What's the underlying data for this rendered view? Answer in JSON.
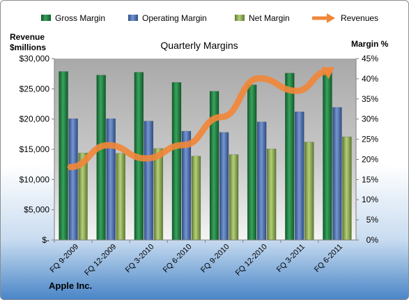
{
  "chart_data": {
    "type": "bar",
    "title": "Quarterly Margins",
    "company": "Apple Inc.",
    "y_left_label_line1": "Revenue",
    "y_left_label_line2": "$millions",
    "y_right_label": "Margin %",
    "categories": [
      "FQ 9-2009",
      "FQ 12-2009",
      "FQ 3-2010",
      "FQ 6-2010",
      "FQ 9-2010",
      "FQ 12-2010",
      "FQ 3-2011",
      "FQ 6-2011"
    ],
    "y_left_lim": [
      0,
      30000
    ],
    "y_left_ticks": [
      "$-",
      "$5,000",
      "$10,000",
      "$15,000",
      "$20,000",
      "$25,000",
      "$30,000"
    ],
    "y_right_lim": [
      0,
      45
    ],
    "y_right_ticks": [
      "0%",
      "5%",
      "10%",
      "15%",
      "20%",
      "25%",
      "30%",
      "35%",
      "40%",
      "45%"
    ],
    "series": [
      {
        "name": "Gross Margin",
        "kind": "bar",
        "axis": "right",
        "color": "#1e7b3e",
        "values": [
          41.8,
          40.9,
          41.6,
          39.1,
          36.9,
          38.5,
          41.4,
          41.7
        ]
      },
      {
        "name": "Operating Margin",
        "kind": "bar",
        "axis": "right",
        "color": "#4468a8",
        "values": [
          30.1,
          30.1,
          29.5,
          27.0,
          26.7,
          29.3,
          31.8,
          32.9
        ]
      },
      {
        "name": "Net Margin",
        "kind": "bar",
        "axis": "right",
        "color": "#8bab4c",
        "values": [
          21.6,
          21.5,
          22.7,
          20.8,
          21.2,
          22.6,
          24.3,
          25.6
        ]
      },
      {
        "name": "Revenues",
        "kind": "line",
        "axis": "left",
        "color": "#f0873a",
        "values": [
          12070,
          15680,
          13500,
          15700,
          20340,
          26740,
          24670,
          28570
        ]
      }
    ],
    "legend_position": "top",
    "grid": false
  }
}
